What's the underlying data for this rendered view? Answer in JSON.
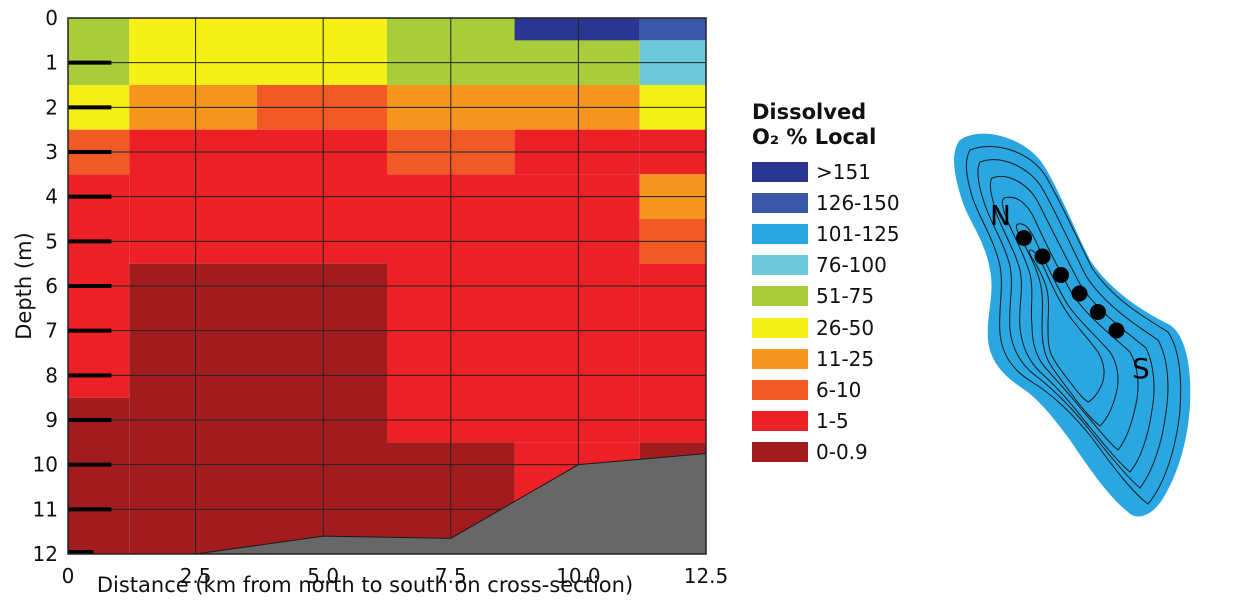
{
  "chart_data": {
    "type": "heatmap",
    "title": "",
    "xlabel": "Distance (km from north to south on cross-section)",
    "ylabel": "Depth (m)",
    "xlim": [
      0,
      12.5
    ],
    "ylim": [
      0,
      12
    ],
    "y_inverted": true,
    "x_ticks": [
      "0",
      "2.5",
      "5.0",
      "7.5",
      "10.0",
      "12.5"
    ],
    "x_tick_values": [
      0,
      2.5,
      5,
      7.5,
      10,
      12.5
    ],
    "y_ticks": [
      "0",
      "1",
      "2",
      "3",
      "4",
      "5",
      "6",
      "7",
      "8",
      "9",
      "10",
      "11",
      "12"
    ],
    "y_tick_values": [
      0,
      1,
      2,
      3,
      4,
      5,
      6,
      7,
      8,
      9,
      10,
      11,
      12
    ],
    "grid": true,
    "legend": {
      "title_line1": "Dissolved",
      "title_line2": "O₂ % Local",
      "placement": "right",
      "classes": [
        {
          "label": ">151",
          "color": "#2a3691"
        },
        {
          "label": "126-150",
          "color": "#3a57a8"
        },
        {
          "label": "101-125",
          "color": "#2aa6e0"
        },
        {
          "label": "76-100",
          "color": "#6bc9d9"
        },
        {
          "label": "51-75",
          "color": "#a9cc3a"
        },
        {
          "label": "26-50",
          "color": "#f6f019"
        },
        {
          "label": "11-25",
          "color": "#f6951e"
        },
        {
          "label": "6-10",
          "color": "#ef5a25"
        },
        {
          "label": "1-5",
          "color": "#ec2027"
        },
        {
          "label": "0-0.9",
          "color": "#a21c1f"
        }
      ]
    },
    "cells": [
      {
        "x0": 0,
        "x1": 1.2,
        "y0": 0,
        "y1": 1.5,
        "class": "51-75"
      },
      {
        "x0": 0,
        "x1": 1.2,
        "y0": 1.5,
        "y1": 2.5,
        "class": "26-50"
      },
      {
        "x0": 0,
        "x1": 1.2,
        "y0": 2.5,
        "y1": 3.5,
        "class": "6-10"
      },
      {
        "x0": 0,
        "x1": 1.2,
        "y0": 3.5,
        "y1": 8.5,
        "class": "1-5"
      },
      {
        "x0": 0,
        "x1": 1.2,
        "y0": 8.5,
        "y1": 12,
        "class": "0-0.9"
      },
      {
        "x0": 1.2,
        "x1": 6.25,
        "y0": 0,
        "y1": 1.5,
        "class": "26-50"
      },
      {
        "x0": 1.2,
        "x1": 3.7,
        "y0": 1.5,
        "y1": 2.5,
        "class": "11-25"
      },
      {
        "x0": 3.7,
        "x1": 6.25,
        "y0": 1.5,
        "y1": 2.5,
        "class": "6-10"
      },
      {
        "x0": 1.2,
        "x1": 6.25,
        "y0": 2.5,
        "y1": 5.5,
        "class": "1-5"
      },
      {
        "x0": 1.2,
        "x1": 6.25,
        "y0": 5.5,
        "y1": 12,
        "class": "0-0.9"
      },
      {
        "x0": 6.25,
        "x1": 11.2,
        "y0": 0,
        "y1": 1.5,
        "class": "51-75"
      },
      {
        "x0": 8.75,
        "x1": 11.2,
        "y0": 0,
        "y1": 0.5,
        "class": ">151"
      },
      {
        "x0": 6.25,
        "x1": 11.2,
        "y0": 1.5,
        "y1": 2.5,
        "class": "11-25"
      },
      {
        "x0": 6.25,
        "x1": 8.75,
        "y0": 2.5,
        "y1": 3.5,
        "class": "6-10"
      },
      {
        "x0": 8.75,
        "x1": 11.2,
        "y0": 2.5,
        "y1": 3.5,
        "class": "1-5"
      },
      {
        "x0": 6.25,
        "x1": 11.2,
        "y0": 3.5,
        "y1": 9.5,
        "class": "1-5"
      },
      {
        "x0": 6.25,
        "x1": 8.75,
        "y0": 9.5,
        "y1": 12,
        "class": "0-0.9"
      },
      {
        "x0": 8.75,
        "x1": 11.2,
        "y0": 9.5,
        "y1": 12,
        "class": "1-5"
      },
      {
        "x0": 11.2,
        "x1": 12.5,
        "y0": 0,
        "y1": 0.5,
        "class": "126-150"
      },
      {
        "x0": 11.2,
        "x1": 12.5,
        "y0": 0.5,
        "y1": 1.5,
        "class": "76-100"
      },
      {
        "x0": 11.2,
        "x1": 12.5,
        "y0": 1.5,
        "y1": 2.5,
        "class": "26-50"
      },
      {
        "x0": 11.2,
        "x1": 12.5,
        "y0": 2.5,
        "y1": 3.5,
        "class": "1-5"
      },
      {
        "x0": 11.2,
        "x1": 12.5,
        "y0": 3.5,
        "y1": 4.5,
        "class": "11-25"
      },
      {
        "x0": 11.2,
        "x1": 12.5,
        "y0": 4.5,
        "y1": 5.5,
        "class": "6-10"
      },
      {
        "x0": 11.2,
        "x1": 12.5,
        "y0": 5.5,
        "y1": 9.5,
        "class": "1-5"
      },
      {
        "x0": 11.2,
        "x1": 12.5,
        "y0": 9.5,
        "y1": 12,
        "class": "0-0.9"
      }
    ],
    "bottom_profile": [
      [
        0,
        12
      ],
      [
        2.5,
        12
      ],
      [
        5.0,
        11.6
      ],
      [
        7.5,
        11.65
      ],
      [
        10.0,
        10.0
      ],
      [
        12.5,
        9.75
      ]
    ],
    "bottom_color": "#676767",
    "sample_depths": [
      1,
      2,
      3,
      4,
      5,
      6,
      7,
      8,
      9,
      10,
      11,
      12
    ]
  },
  "map": {
    "north_label": "N",
    "south_label": "S",
    "water_color": "#2aa6e0",
    "station_count": 6
  }
}
